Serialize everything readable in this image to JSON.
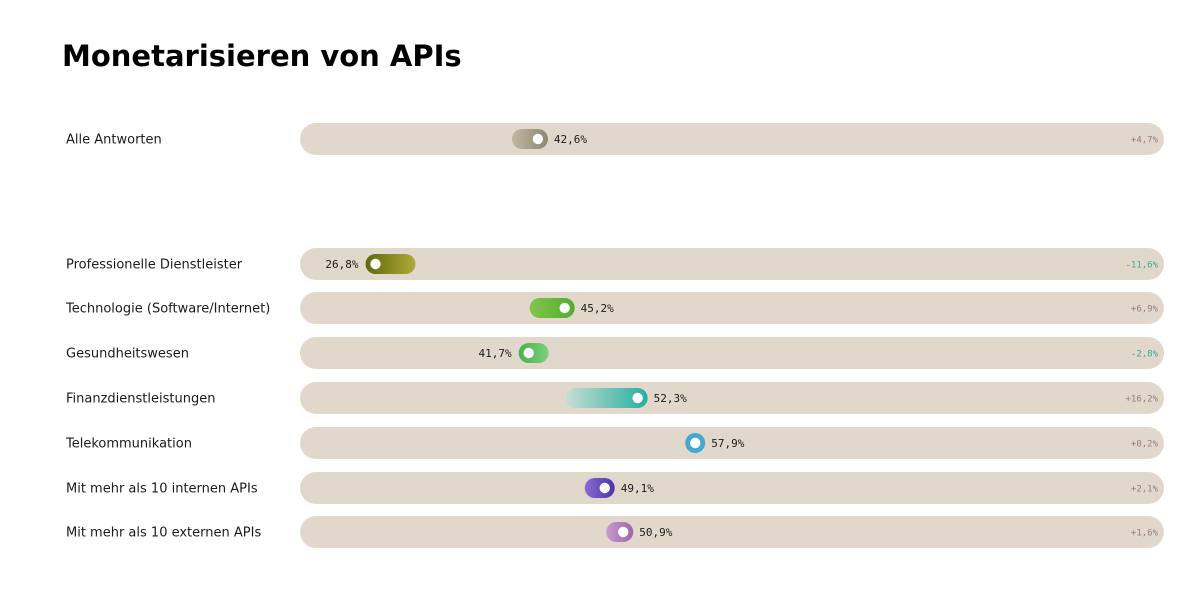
{
  "chart_data": {
    "type": "bar",
    "title": "Monetarisieren von APIs",
    "xlim": [
      0,
      100
    ],
    "unit": "%",
    "rows": [
      {
        "label": "Alle Antworten",
        "value": 42.6,
        "value_label": "42,6%",
        "change": "+4,7%",
        "change_color": "#9a7b7b",
        "color_from": "#c2b8a3",
        "color_to": "#8d8672",
        "label_side": "right"
      },
      {
        "label": "Professionelle Dienstleister",
        "value": 26.8,
        "value_label": "26,8%",
        "change": "-11,6%",
        "change_color": "#3aa896",
        "color_from": "#b0aa38",
        "color_to": "#5e6910",
        "label_side": "left"
      },
      {
        "label": "Technologie (Software/Internet)",
        "value": 45.2,
        "value_label": "45,2%",
        "change": "+6,9%",
        "change_color": "#9a7b7b",
        "color_from": "#84c44e",
        "color_to": "#4fae2c",
        "label_side": "right"
      },
      {
        "label": "Gesundheitswesen",
        "value": 41.7,
        "value_label": "41,7%",
        "change": "-2,8%",
        "change_color": "#3aa896",
        "color_from": "#7ccf7e",
        "color_to": "#44b34a",
        "label_side": "left"
      },
      {
        "label": "Finanzdienstleistungen",
        "value": 52.3,
        "value_label": "52,3%",
        "change": "+16,2%",
        "change_color": "#9a7b7b",
        "color_from": "#c8ddd5",
        "color_to": "#22b09e",
        "label_side": "right"
      },
      {
        "label": "Telekommunikation",
        "value": 57.9,
        "value_label": "57,9%",
        "change": "+0,2%",
        "change_color": "#9a7b7b",
        "color_from": "#43a9d3",
        "color_to": "#43a9d3",
        "label_side": "right"
      },
      {
        "label": "Mit mehr als 10 internen APIs",
        "value": 49.1,
        "value_label": "49,1%",
        "change": "+2,1%",
        "change_color": "#9a7b7b",
        "color_from": "#8a6ad3",
        "color_to": "#4a36a8",
        "label_side": "right"
      },
      {
        "label": "Mit mehr als 10 externen APIs",
        "value": 50.9,
        "value_label": "50,9%",
        "change": "+1,6%",
        "change_color": "#9a7b7b",
        "color_from": "#c79ad0",
        "color_to": "#a064a8",
        "label_side": "right"
      }
    ],
    "track_color": "#e1d8cb"
  }
}
